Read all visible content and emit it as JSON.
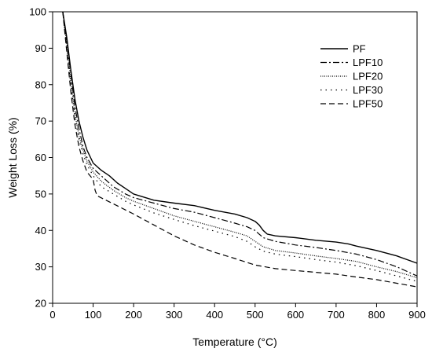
{
  "chart_data": {
    "type": "line",
    "xlabel": "Temperature (°C)",
    "ylabel": "Weight Loss (%)",
    "xlim": [
      0,
      900
    ],
    "ylim": [
      20,
      100
    ],
    "xticks": [
      0,
      100,
      200,
      300,
      400,
      500,
      600,
      700,
      800,
      900
    ],
    "yticks": [
      20,
      30,
      40,
      50,
      60,
      70,
      80,
      90,
      100
    ],
    "grid": false,
    "legend_position": "top-right",
    "series": [
      {
        "name": "PF",
        "dash": "solid",
        "points": [
          [
            25,
            100
          ],
          [
            35,
            93
          ],
          [
            45,
            84
          ],
          [
            55,
            76
          ],
          [
            65,
            70
          ],
          [
            75,
            65.5
          ],
          [
            85,
            62
          ],
          [
            100,
            58.5
          ],
          [
            120,
            56.5
          ],
          [
            140,
            55
          ],
          [
            160,
            53
          ],
          [
            180,
            51.5
          ],
          [
            200,
            50
          ],
          [
            250,
            48.3
          ],
          [
            300,
            47.5
          ],
          [
            350,
            46.8
          ],
          [
            400,
            45.5
          ],
          [
            450,
            44.5
          ],
          [
            480,
            43.5
          ],
          [
            500,
            42.5
          ],
          [
            510,
            41.5
          ],
          [
            520,
            40
          ],
          [
            530,
            39
          ],
          [
            550,
            38.5
          ],
          [
            600,
            38
          ],
          [
            650,
            37.3
          ],
          [
            700,
            36.8
          ],
          [
            730,
            36.3
          ],
          [
            750,
            35.7
          ],
          [
            800,
            34.5
          ],
          [
            850,
            33
          ],
          [
            900,
            31
          ]
        ]
      },
      {
        "name": "LPF10",
        "dash": "dashdot",
        "points": [
          [
            25,
            100
          ],
          [
            35,
            92
          ],
          [
            45,
            83
          ],
          [
            55,
            74
          ],
          [
            65,
            68
          ],
          [
            75,
            63
          ],
          [
            85,
            60
          ],
          [
            100,
            57
          ],
          [
            120,
            55
          ],
          [
            150,
            52
          ],
          [
            180,
            50
          ],
          [
            200,
            49
          ],
          [
            250,
            47.5
          ],
          [
            300,
            46
          ],
          [
            350,
            45
          ],
          [
            400,
            43.5
          ],
          [
            450,
            42
          ],
          [
            480,
            41
          ],
          [
            500,
            40
          ],
          [
            510,
            39
          ],
          [
            520,
            38
          ],
          [
            550,
            37
          ],
          [
            600,
            36
          ],
          [
            650,
            35.3
          ],
          [
            700,
            34.5
          ],
          [
            750,
            33.5
          ],
          [
            800,
            32
          ],
          [
            850,
            30
          ],
          [
            900,
            27.5
          ]
        ]
      },
      {
        "name": "LPF20",
        "dash": "dotted",
        "points": [
          [
            25,
            100
          ],
          [
            35,
            91
          ],
          [
            45,
            81
          ],
          [
            55,
            72
          ],
          [
            65,
            66
          ],
          [
            75,
            62
          ],
          [
            85,
            59
          ],
          [
            100,
            56
          ],
          [
            120,
            53.5
          ],
          [
            150,
            51
          ],
          [
            180,
            49
          ],
          [
            200,
            48
          ],
          [
            250,
            46
          ],
          [
            300,
            44
          ],
          [
            350,
            42.5
          ],
          [
            400,
            41
          ],
          [
            450,
            39.5
          ],
          [
            480,
            38.5
          ],
          [
            500,
            37
          ],
          [
            520,
            35.5
          ],
          [
            550,
            34.5
          ],
          [
            600,
            33.8
          ],
          [
            650,
            33
          ],
          [
            700,
            32.3
          ],
          [
            750,
            31.5
          ],
          [
            800,
            30
          ],
          [
            850,
            28.7
          ],
          [
            900,
            27
          ]
        ]
      },
      {
        "name": "LPF30",
        "dash": "dot",
        "points": [
          [
            25,
            100
          ],
          [
            35,
            90
          ],
          [
            45,
            80
          ],
          [
            55,
            71
          ],
          [
            65,
            65
          ],
          [
            75,
            61
          ],
          [
            85,
            58
          ],
          [
            100,
            55
          ],
          [
            120,
            52
          ],
          [
            150,
            50
          ],
          [
            180,
            48
          ],
          [
            200,
            47
          ],
          [
            250,
            44.8
          ],
          [
            300,
            43
          ],
          [
            350,
            41.3
          ],
          [
            400,
            39.8
          ],
          [
            450,
            38.3
          ],
          [
            480,
            37
          ],
          [
            500,
            35.5
          ],
          [
            520,
            34.3
          ],
          [
            550,
            33.5
          ],
          [
            600,
            32.8
          ],
          [
            650,
            32
          ],
          [
            700,
            31.3
          ],
          [
            750,
            30.3
          ],
          [
            800,
            29
          ],
          [
            850,
            27.5
          ],
          [
            900,
            26
          ]
        ]
      },
      {
        "name": "LPF50",
        "dash": "dashed",
        "points": [
          [
            25,
            100
          ],
          [
            35,
            89
          ],
          [
            45,
            78
          ],
          [
            55,
            69
          ],
          [
            65,
            63
          ],
          [
            75,
            59
          ],
          [
            85,
            56
          ],
          [
            100,
            54
          ],
          [
            105,
            51
          ],
          [
            110,
            49.5
          ],
          [
            150,
            47.3
          ],
          [
            200,
            44.5
          ],
          [
            250,
            41.5
          ],
          [
            300,
            38.5
          ],
          [
            350,
            36
          ],
          [
            400,
            34
          ],
          [
            450,
            32.3
          ],
          [
            500,
            30.5
          ],
          [
            550,
            29.5
          ],
          [
            600,
            29
          ],
          [
            650,
            28.5
          ],
          [
            700,
            28
          ],
          [
            750,
            27.2
          ],
          [
            800,
            26.5
          ],
          [
            850,
            25.5
          ],
          [
            900,
            24.5
          ]
        ]
      }
    ]
  }
}
